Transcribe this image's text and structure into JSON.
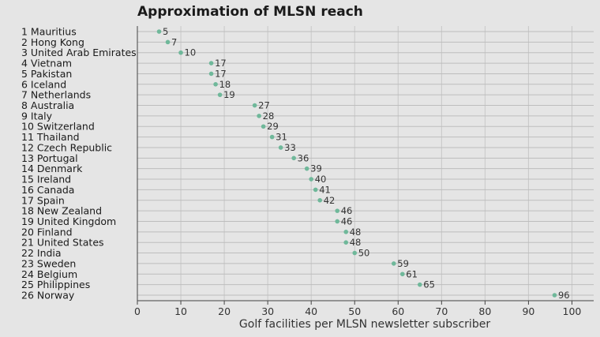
{
  "chart_data": {
    "type": "scatter",
    "title": "Approximation of MLSN reach",
    "xlabel": "Golf facilities per MLSN newsletter subscriber",
    "ylabel": "",
    "xlim": [
      0,
      105
    ],
    "xticks": [
      0,
      10,
      20,
      30,
      40,
      50,
      60,
      70,
      80,
      90,
      100
    ],
    "grid": true,
    "points": [
      {
        "label": "1 Mauritius",
        "x": 5,
        "value_label": "5"
      },
      {
        "label": "2 Hong Kong",
        "x": 7,
        "value_label": "7"
      },
      {
        "label": "3 United Arab Emirates",
        "x": 10,
        "value_label": "10"
      },
      {
        "label": "4 Vietnam",
        "x": 17,
        "value_label": "17"
      },
      {
        "label": "5 Pakistan",
        "x": 17,
        "value_label": "17"
      },
      {
        "label": "6 Iceland",
        "x": 18,
        "value_label": "18"
      },
      {
        "label": "7 Netherlands",
        "x": 19,
        "value_label": "19"
      },
      {
        "label": "8 Australia",
        "x": 27,
        "value_label": "27"
      },
      {
        "label": "9 Italy",
        "x": 28,
        "value_label": "28"
      },
      {
        "label": "10 Switzerland",
        "x": 29,
        "value_label": "29"
      },
      {
        "label": "11 Thailand",
        "x": 31,
        "value_label": "31"
      },
      {
        "label": "12 Czech Republic",
        "x": 33,
        "value_label": "33"
      },
      {
        "label": "13 Portugal",
        "x": 36,
        "value_label": "36"
      },
      {
        "label": "14 Denmark",
        "x": 39,
        "value_label": "39"
      },
      {
        "label": "15 Ireland",
        "x": 40,
        "value_label": "40"
      },
      {
        "label": "16 Canada",
        "x": 41,
        "value_label": "41"
      },
      {
        "label": "17 Spain",
        "x": 42,
        "value_label": "42"
      },
      {
        "label": "18 New Zealand",
        "x": 46,
        "value_label": "46"
      },
      {
        "label": "19 United Kingdom",
        "x": 46,
        "value_label": "46"
      },
      {
        "label": "20 Finland",
        "x": 48,
        "value_label": "48"
      },
      {
        "label": "21 United States",
        "x": 48,
        "value_label": "48"
      },
      {
        "label": "22 India",
        "x": 50,
        "value_label": "50"
      },
      {
        "label": "23 Sweden",
        "x": 59,
        "value_label": "59"
      },
      {
        "label": "24 Belgium",
        "x": 61,
        "value_label": "61"
      },
      {
        "label": "25 Philippines",
        "x": 65,
        "value_label": "65"
      },
      {
        "label": "26 Norway",
        "x": 96,
        "value_label": "96"
      }
    ],
    "colors": {
      "point": "#6fb89a",
      "background": "#e5e5e5",
      "grid": "#c8c8c8"
    }
  }
}
